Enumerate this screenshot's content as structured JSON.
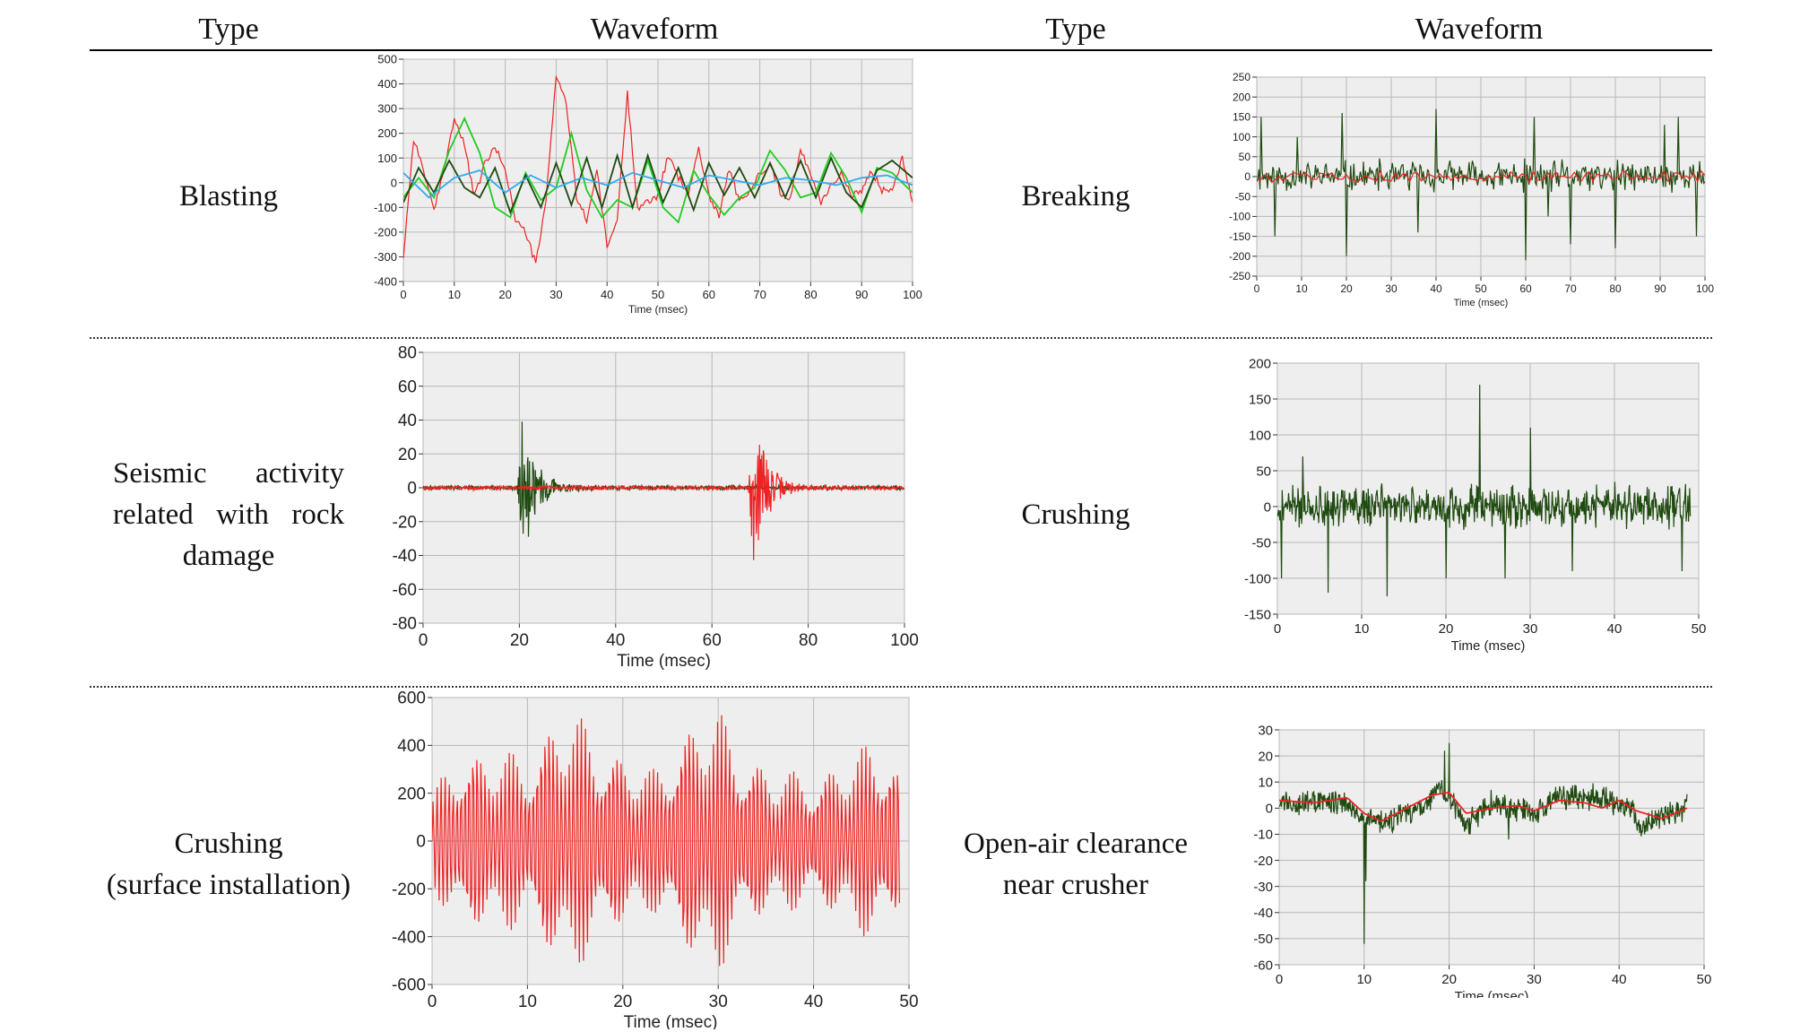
{
  "header": {
    "type_left": "Type",
    "waveform_left": "Waveform",
    "type_right": "Type",
    "waveform_right": "Waveform"
  },
  "rows": [
    {
      "left": {
        "type_lines": [
          "Blasting"
        ]
      },
      "right": {
        "type_lines": [
          "Breaking"
        ]
      }
    },
    {
      "left": {
        "type_lines": [
          "Seismic activity",
          "related with rock",
          "damage"
        ]
      },
      "right": {
        "type_lines": [
          "Crushing"
        ]
      }
    },
    {
      "left": {
        "type_lines": [
          "Crushing",
          "(surface installation)"
        ]
      },
      "right": {
        "type_lines": [
          "Open-air clearance",
          "near crusher"
        ]
      }
    }
  ],
  "colors": {
    "red": "#ee2222",
    "green": "#22cc22",
    "darkgreen": "#1f4a10",
    "lightblue": "#33aaee",
    "plot_bg": "#eeeeee",
    "grid": "#b8b8b8"
  },
  "chart_data": [
    {
      "id": "blasting",
      "type": "line",
      "title": "",
      "xlabel": "Time (msec)",
      "ylabel": "",
      "xlim": [
        0,
        100
      ],
      "ylim": [
        -400,
        500
      ],
      "xticks": [
        0,
        10,
        20,
        30,
        40,
        50,
        60,
        70,
        80,
        90,
        100
      ],
      "yticks": [
        -400,
        -300,
        -200,
        -100,
        0,
        100,
        200,
        300,
        400,
        500
      ],
      "grid": true,
      "legend": "none",
      "series": [
        {
          "color": "#ee2222",
          "style": "sparse",
          "x": [
            0,
            2,
            4,
            6,
            8,
            10,
            12,
            14,
            16,
            18,
            20,
            22,
            24,
            26,
            28,
            30,
            32,
            34,
            36,
            38,
            40,
            42,
            44,
            46,
            48,
            50,
            52,
            54,
            56,
            58,
            60,
            62,
            64,
            66,
            68,
            70,
            72,
            74,
            76,
            78,
            80,
            82,
            84,
            86,
            88,
            90,
            92,
            94,
            96,
            98,
            100
          ],
          "values": [
            -300,
            180,
            50,
            -120,
            60,
            260,
            150,
            -60,
            80,
            140,
            60,
            -150,
            -200,
            -330,
            -80,
            440,
            320,
            -60,
            -150,
            50,
            -260,
            -150,
            360,
            -100,
            -80,
            -50,
            110,
            20,
            -40,
            140,
            -50,
            -130,
            60,
            -80,
            -40,
            40,
            80,
            -40,
            -60,
            130,
            40,
            -80,
            -10,
            40,
            -60,
            -30,
            50,
            -30,
            -20,
            100,
            -70
          ]
        },
        {
          "color": "#22cc22",
          "style": "smooth",
          "x": [
            0,
            3,
            6,
            9,
            12,
            15,
            18,
            21,
            24,
            27,
            30,
            33,
            36,
            39,
            42,
            45,
            48,
            51,
            54,
            57,
            60,
            63,
            66,
            69,
            72,
            75,
            78,
            81,
            84,
            87,
            90,
            93,
            96,
            100
          ],
          "values": [
            -60,
            20,
            -60,
            130,
            260,
            120,
            -100,
            -140,
            40,
            -70,
            -20,
            200,
            -30,
            -140,
            -70,
            -100,
            90,
            -100,
            -160,
            50,
            -50,
            -130,
            -60,
            -20,
            130,
            50,
            -60,
            -40,
            120,
            20,
            -120,
            60,
            40,
            -40
          ]
        },
        {
          "color": "#1f4a10",
          "style": "smooth",
          "x": [
            0,
            3,
            6,
            9,
            12,
            15,
            18,
            21,
            24,
            27,
            30,
            33,
            36,
            39,
            42,
            45,
            48,
            51,
            54,
            57,
            60,
            63,
            66,
            69,
            72,
            75,
            78,
            81,
            84,
            87,
            90,
            93,
            96,
            100
          ],
          "values": [
            -80,
            60,
            -40,
            90,
            -20,
            -60,
            60,
            -120,
            30,
            -100,
            80,
            -90,
            100,
            -100,
            110,
            -100,
            110,
            -80,
            60,
            -110,
            80,
            -50,
            60,
            -60,
            80,
            -60,
            90,
            -60,
            100,
            -40,
            -100,
            50,
            90,
            20
          ]
        },
        {
          "color": "#33aaee",
          "style": "smooth",
          "x": [
            0,
            5,
            10,
            15,
            20,
            25,
            30,
            35,
            40,
            45,
            50,
            55,
            60,
            65,
            70,
            75,
            80,
            85,
            90,
            95,
            100
          ],
          "values": [
            40,
            -60,
            20,
            50,
            -40,
            30,
            -20,
            20,
            -10,
            40,
            10,
            -20,
            30,
            10,
            -10,
            20,
            10,
            -10,
            20,
            30,
            -10
          ]
        }
      ]
    },
    {
      "id": "breaking",
      "type": "line",
      "title": "",
      "xlabel": "Time (msec)",
      "ylabel": "",
      "xlim": [
        0,
        100
      ],
      "ylim": [
        -250,
        250
      ],
      "xticks": [
        0,
        10,
        20,
        30,
        40,
        50,
        60,
        70,
        80,
        90,
        100
      ],
      "yticks": [
        -250,
        -200,
        -150,
        -100,
        -50,
        0,
        50,
        100,
        150,
        200,
        250
      ],
      "grid": true,
      "legend": "none",
      "series": [
        {
          "color": "#1f4a10",
          "style": "noise",
          "samples": 420,
          "seed": 11,
          "base": 40,
          "scale": [
            0,
            100
          ],
          "spikes": [
            [
              1,
              150
            ],
            [
              4,
              -150
            ],
            [
              9,
              100
            ],
            [
              19,
              160
            ],
            [
              20,
              -200
            ],
            [
              36,
              -140
            ],
            [
              40,
              170
            ],
            [
              60,
              -210
            ],
            [
              62,
              150
            ],
            [
              65,
              -100
            ],
            [
              70,
              -170
            ],
            [
              80,
              -180
            ],
            [
              91,
              130
            ],
            [
              94,
              150
            ],
            [
              98,
              -150
            ]
          ]
        },
        {
          "color": "#ee2222",
          "style": "noise",
          "samples": 120,
          "seed": 5,
          "base": 15,
          "scale": [
            0,
            100
          ],
          "spikes": []
        }
      ]
    },
    {
      "id": "seismic",
      "type": "line",
      "title": "",
      "xlabel": "Time (msec)",
      "ylabel": "",
      "xlim": [
        0,
        100
      ],
      "ylim": [
        -80,
        80
      ],
      "xticks": [
        0,
        20,
        40,
        60,
        80,
        100
      ],
      "yticks": [
        -80,
        -60,
        -40,
        -20,
        0,
        20,
        40,
        60,
        80
      ],
      "grid": true,
      "legend": "none",
      "series": [
        {
          "color": "#1f4a10",
          "style": "burst",
          "samples": 900,
          "seed": 3,
          "center": 20.5,
          "peak": 45,
          "decay": 3.0,
          "floor": 1.5,
          "scale": [
            0,
            100
          ]
        },
        {
          "color": "#ee2222",
          "style": "burst",
          "samples": 900,
          "seed": 7,
          "center": 68.5,
          "peak": 62,
          "decay": 2.6,
          "floor": 1.5,
          "scale": [
            0,
            100
          ]
        }
      ]
    },
    {
      "id": "crushing",
      "type": "line",
      "title": "",
      "xlabel": "Time (msec)",
      "ylabel": "",
      "xlim": [
        0,
        50
      ],
      "ylim": [
        -150,
        200
      ],
      "xticks": [
        0,
        10,
        20,
        30,
        40,
        50
      ],
      "yticks": [
        -150,
        -100,
        -50,
        0,
        50,
        100,
        150,
        200
      ],
      "grid": true,
      "legend": "none",
      "series": [
        {
          "color": "#1f4a10",
          "style": "noise",
          "samples": 700,
          "seed": 21,
          "base": 30,
          "scale": [
            0,
            49
          ],
          "spikes": [
            [
              0.5,
              -100
            ],
            [
              3,
              70
            ],
            [
              6,
              -120
            ],
            [
              13,
              -125
            ],
            [
              20,
              -100
            ],
            [
              24,
              170
            ],
            [
              27,
              -100
            ],
            [
              30,
              110
            ],
            [
              35,
              -90
            ],
            [
              48,
              -90
            ]
          ]
        }
      ]
    },
    {
      "id": "crushing_surface",
      "type": "line",
      "title": "",
      "xlabel": "Time (msec)",
      "ylabel": "",
      "xlim": [
        0,
        50
      ],
      "ylim": [
        -600,
        600
      ],
      "xticks": [
        0,
        10,
        20,
        30,
        40,
        50
      ],
      "yticks": [
        -600,
        -400,
        -200,
        0,
        200,
        400,
        600
      ],
      "grid": true,
      "legend": "none",
      "series": [
        {
          "color": "#ee2222",
          "style": "oscillation",
          "samples": 460,
          "scale": [
            0,
            49
          ],
          "period": 0.42,
          "env_x": [
            0,
            3,
            7,
            10,
            13,
            16,
            20,
            23,
            26,
            28,
            30,
            33,
            36,
            40,
            44,
            46,
            48,
            49
          ],
          "env_y": [
            200,
            420,
            380,
            380,
            560,
            520,
            380,
            300,
            480,
            560,
            560,
            400,
            300,
            300,
            360,
            440,
            440,
            300
          ]
        }
      ]
    },
    {
      "id": "open_air",
      "type": "line",
      "title": "",
      "xlabel": "Time (msec)",
      "ylabel": "",
      "xlim": [
        0,
        50
      ],
      "ylim": [
        -60,
        30
      ],
      "xticks": [
        0,
        10,
        20,
        30,
        40,
        50
      ],
      "yticks": [
        -60,
        -50,
        -40,
        -30,
        -20,
        -10,
        0,
        10,
        20,
        30
      ],
      "grid": true,
      "legend": "none",
      "series": [
        {
          "color": "#1f4a10",
          "style": "noise",
          "samples": 720,
          "seed": 33,
          "base": 5,
          "scale": [
            0,
            48
          ],
          "offset_x": [
            0,
            8,
            10,
            12,
            17,
            19,
            22,
            25,
            30,
            33,
            36,
            40,
            43,
            46,
            48
          ],
          "offset_y": [
            2,
            3,
            -4,
            -6,
            0,
            8,
            -6,
            2,
            -2,
            4,
            5,
            2,
            -6,
            -2,
            0
          ],
          "spikes": [
            [
              10,
              -52
            ],
            [
              10.2,
              -28
            ],
            [
              19.5,
              22
            ],
            [
              20,
              25
            ],
            [
              27,
              -12
            ],
            [
              43,
              -10
            ]
          ]
        },
        {
          "color": "#ee2222",
          "style": "smoothpath",
          "x": [
            0,
            4,
            8,
            10,
            12,
            15,
            18,
            20,
            22,
            25,
            28,
            30,
            33,
            36,
            38,
            40,
            42,
            45,
            48
          ],
          "values": [
            3,
            2,
            4,
            -2,
            -5,
            0,
            5,
            6,
            -2,
            0,
            1,
            -1,
            3,
            2,
            0,
            3,
            -1,
            -4,
            0
          ]
        }
      ]
    }
  ]
}
